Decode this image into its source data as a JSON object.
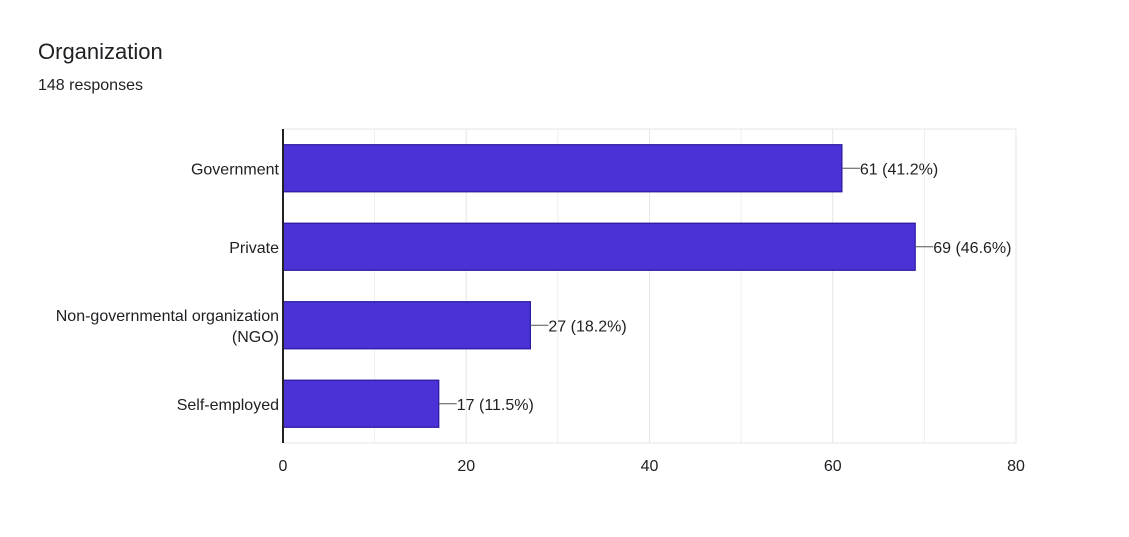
{
  "header": {
    "title": "Organization",
    "subtitle": "148 responses"
  },
  "colors": {
    "bar_fill": "#4a32d6",
    "bar_stroke": "#2a1aa0",
    "grid": "#e6e6e6",
    "axis": "#202124",
    "text": "#202124"
  },
  "chart_data": {
    "type": "bar",
    "orientation": "horizontal",
    "categories": [
      [
        "Government"
      ],
      [
        "Private"
      ],
      [
        "Non-governmental organization",
        "(NGO)"
      ],
      [
        "Self-employed"
      ]
    ],
    "values": [
      61,
      69,
      27,
      17
    ],
    "value_labels": [
      "61 (41.2%)",
      "69 (46.6%)",
      "27 (18.2%)",
      "17 (11.5%)"
    ],
    "xlim": [
      0,
      80
    ],
    "xticks": [
      0,
      20,
      40,
      60,
      80
    ],
    "grid": true
  }
}
